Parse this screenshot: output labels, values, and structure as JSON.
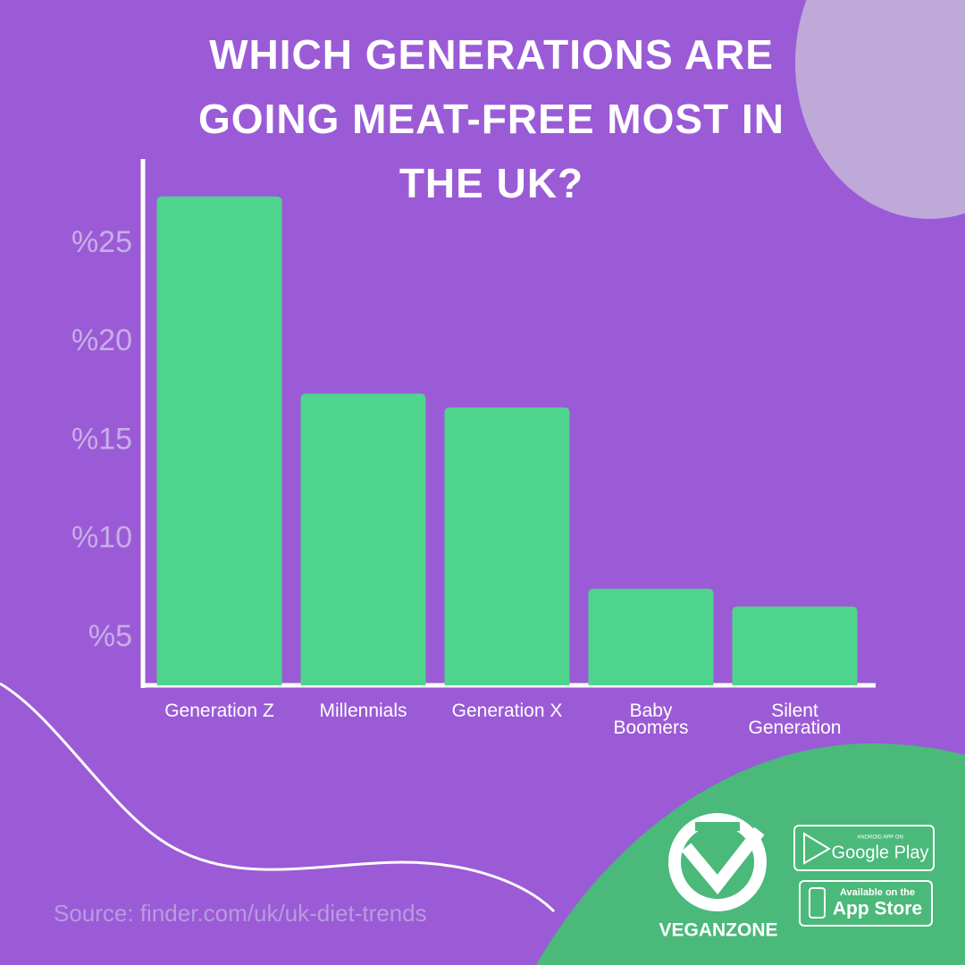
{
  "chart_data": {
    "type": "bar",
    "title": "WHICH GENERATIONS ARE GOING MEAT-FREE MOST IN THE UK?",
    "categories": [
      "Generation Z",
      "Millennials",
      "Generation X",
      "Baby Boomers",
      "Silent Generation"
    ],
    "values": [
      27.4,
      17.4,
      16.7,
      7.5,
      6.6
    ],
    "color": "#4ed48c",
    "ylim": [
      2.6,
      29.3
    ],
    "yticks": [
      {
        "value": 5,
        "label": "%5"
      },
      {
        "value": 10,
        "label": "%10"
      },
      {
        "value": 15,
        "label": "%15"
      },
      {
        "value": 20,
        "label": "%20"
      },
      {
        "value": 25,
        "label": "%25"
      }
    ],
    "grid": false
  },
  "source": "Source: finder.com/uk/uk-diet-trends",
  "brand": {
    "name": "VEGANZONE",
    "google_small": "ANDROID APP ON",
    "google": "Google Play",
    "apple_small": "Available on the",
    "apple": "App Store"
  }
}
